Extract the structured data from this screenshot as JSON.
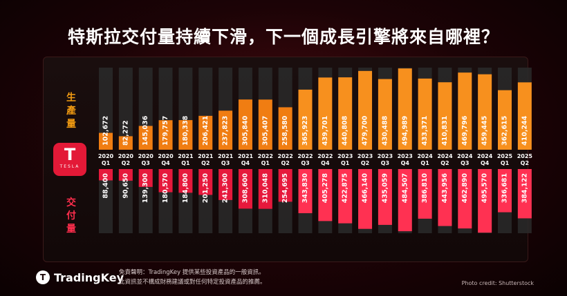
{
  "title": "特斯拉交付量持續下滑，下一個成長引擎將來自哪裡？",
  "labels": {
    "production": "生產量",
    "deliveries": "交付量"
  },
  "logo": {
    "wordmark": "TESLA",
    "icon": "tesla-t-icon"
  },
  "footer": {
    "brand": "TradingKey",
    "disclaimer_line1": "免責聲明：TradingKey 提供某些投資產品的一般資訊。",
    "disclaimer_line2": "此資訊並不構成財務建議或對任何特定投資產品的推薦。",
    "credit": "Photo credit: Shutterstock"
  },
  "colors": {
    "production": "#f07d12",
    "production_highlight": "#f7901e",
    "deliveries": "#e6193c",
    "deliveries_highlight": "#ff3152",
    "track": "#2a2a2a"
  },
  "chart_data": {
    "type": "bar",
    "categories": [
      "2020 Q1",
      "2020 Q2",
      "2020 Q3",
      "2020 Q4",
      "2021 Q1",
      "2021 Q2",
      "2021 Q3",
      "2021 Q4",
      "2022 Q1",
      "2022 Q2",
      "2022 Q3",
      "2022 Q4",
      "2023 Q1",
      "2023 Q2",
      "2023 Q3",
      "2023 Q4",
      "2024 Q1",
      "2024 Q2",
      "2024 Q3",
      "2024 Q4",
      "2025 Q1",
      "2025 Q2"
    ],
    "series": [
      {
        "name": "生產量",
        "values": [
          102672,
          82272,
          145036,
          179757,
          180338,
          206421,
          237823,
          305840,
          305407,
          258580,
          365923,
          439701,
          440808,
          479700,
          430488,
          494989,
          433371,
          410831,
          469796,
          459445,
          362615,
          410244
        ],
        "labels": [
          "102,672",
          "82,272",
          "145,036",
          "179,757",
          "180,338",
          "206,421",
          "237,823",
          "305,840",
          "305,407",
          "258,580",
          "365,923",
          "439,701",
          "440,808",
          "479,700",
          "430,488",
          "494,989",
          "433,371",
          "410,831",
          "469,796",
          "459,445",
          "362,615",
          "410,244"
        ]
      },
      {
        "name": "交付量",
        "values": [
          88400,
          90650,
          139300,
          180570,
          184800,
          201250,
          241300,
          308600,
          310048,
          254695,
          343830,
          405278,
          422875,
          466140,
          435059,
          484507,
          386810,
          443956,
          462890,
          495570,
          336681,
          384122
        ],
        "labels": [
          "88,400",
          "90,650",
          "139,300",
          "180,570",
          "184,800",
          "201,250",
          "241,300",
          "308,600",
          "310,048",
          "254,695",
          "343,830",
          "405,278",
          "422,875",
          "466,140",
          "435,059",
          "484,507",
          "386,810",
          "443,956",
          "462,890",
          "495,570",
          "336,681",
          "384,122"
        ]
      }
    ]
  }
}
